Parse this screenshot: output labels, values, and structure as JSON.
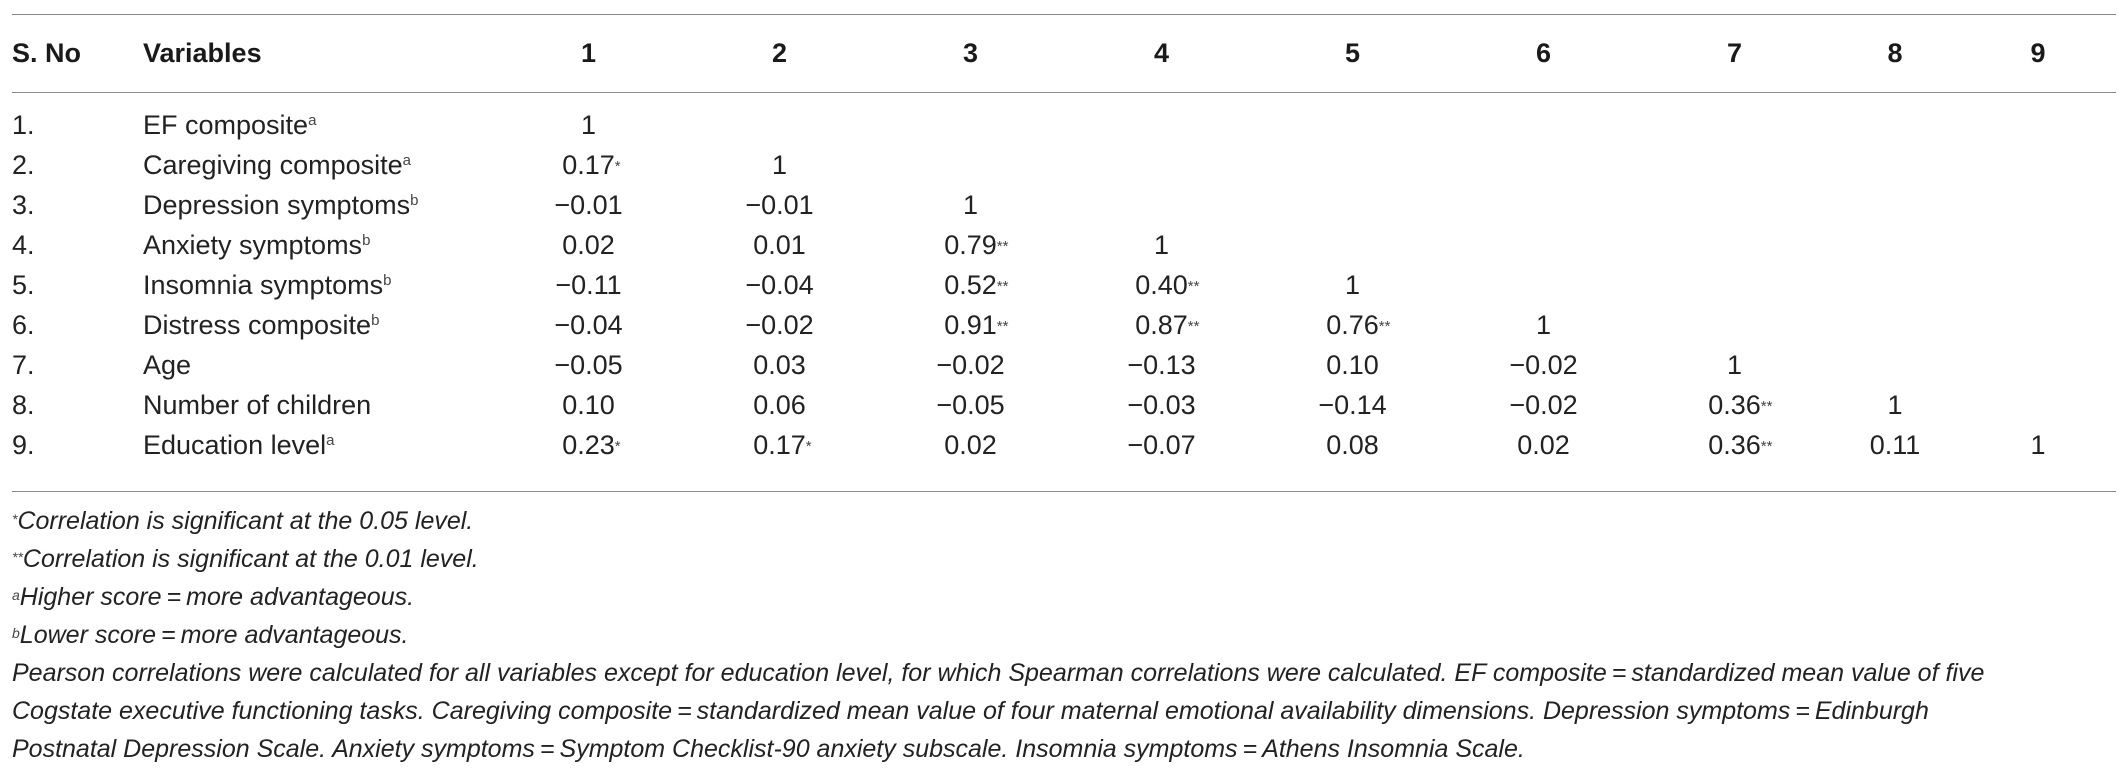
{
  "table": {
    "headers": [
      "S. No",
      "Variables",
      "1",
      "2",
      "3",
      "4",
      "5",
      "6",
      "7",
      "8",
      "9"
    ],
    "rows": [
      {
        "sno": "1.",
        "var": "EF composite",
        "sup": "a",
        "cells": [
          [
            "1",
            ""
          ],
          [
            "",
            ""
          ],
          [
            "",
            ""
          ],
          [
            "",
            ""
          ],
          [
            "",
            ""
          ],
          [
            "",
            ""
          ],
          [
            "",
            ""
          ],
          [
            "",
            ""
          ],
          [
            "",
            ""
          ]
        ]
      },
      {
        "sno": "2.",
        "var": "Caregiving composite",
        "sup": "a",
        "cells": [
          [
            "0.17",
            "*"
          ],
          [
            "1",
            ""
          ],
          [
            "",
            ""
          ],
          [
            "",
            ""
          ],
          [
            "",
            ""
          ],
          [
            "",
            ""
          ],
          [
            "",
            ""
          ],
          [
            "",
            ""
          ],
          [
            "",
            ""
          ]
        ]
      },
      {
        "sno": "3.",
        "var": "Depression symptoms",
        "sup": "b",
        "cells": [
          [
            "−0.01",
            ""
          ],
          [
            "−0.01",
            ""
          ],
          [
            "1",
            ""
          ],
          [
            "",
            ""
          ],
          [
            "",
            ""
          ],
          [
            "",
            ""
          ],
          [
            "",
            ""
          ],
          [
            "",
            ""
          ],
          [
            "",
            ""
          ]
        ]
      },
      {
        "sno": "4.",
        "var": "Anxiety symptoms",
        "sup": "b",
        "cells": [
          [
            "0.02",
            ""
          ],
          [
            "0.01",
            ""
          ],
          [
            "0.79",
            "**"
          ],
          [
            "1",
            ""
          ],
          [
            "",
            ""
          ],
          [
            "",
            ""
          ],
          [
            "",
            ""
          ],
          [
            "",
            ""
          ],
          [
            "",
            ""
          ]
        ]
      },
      {
        "sno": "5.",
        "var": "Insomnia symptoms",
        "sup": "b",
        "cells": [
          [
            "−0.11",
            ""
          ],
          [
            "−0.04",
            ""
          ],
          [
            "0.52",
            "**"
          ],
          [
            "0.40",
            "**"
          ],
          [
            "1",
            ""
          ],
          [
            "",
            ""
          ],
          [
            "",
            ""
          ],
          [
            "",
            ""
          ],
          [
            "",
            ""
          ]
        ]
      },
      {
        "sno": "6.",
        "var": "Distress composite",
        "sup": "b",
        "cells": [
          [
            "−0.04",
            ""
          ],
          [
            "−0.02",
            ""
          ],
          [
            "0.91",
            "**"
          ],
          [
            "0.87",
            "**"
          ],
          [
            "0.76",
            "**"
          ],
          [
            "1",
            ""
          ],
          [
            "",
            ""
          ],
          [
            "",
            ""
          ],
          [
            "",
            ""
          ]
        ]
      },
      {
        "sno": "7.",
        "var": "Age",
        "sup": "",
        "cells": [
          [
            "−0.05",
            ""
          ],
          [
            "0.03",
            ""
          ],
          [
            "−0.02",
            ""
          ],
          [
            "−0.13",
            ""
          ],
          [
            "0.10",
            ""
          ],
          [
            "−0.02",
            ""
          ],
          [
            "1",
            ""
          ],
          [
            "",
            ""
          ],
          [
            "",
            ""
          ]
        ]
      },
      {
        "sno": "8.",
        "var": "Number of children",
        "sup": "",
        "cells": [
          [
            "0.10",
            ""
          ],
          [
            "0.06",
            ""
          ],
          [
            "−0.05",
            ""
          ],
          [
            "−0.03",
            ""
          ],
          [
            "−0.14",
            ""
          ],
          [
            "−0.02",
            ""
          ],
          [
            "0.36",
            "**"
          ],
          [
            "1",
            ""
          ],
          [
            "",
            ""
          ]
        ]
      },
      {
        "sno": "9.",
        "var": "Education level",
        "sup": "a",
        "cells": [
          [
            "0.23",
            "*"
          ],
          [
            "0.17",
            "*"
          ],
          [
            "0.02",
            ""
          ],
          [
            "−0.07",
            ""
          ],
          [
            "0.08",
            ""
          ],
          [
            "0.02",
            ""
          ],
          [
            "0.36",
            "**"
          ],
          [
            "0.11",
            ""
          ],
          [
            "1",
            ""
          ]
        ]
      }
    ]
  },
  "notes": {
    "n1_mark": "*",
    "n1": "Correlation is significant at the 0.05 level.",
    "n2_mark": "**",
    "n2": "Correlation is significant at the 0.01 level.",
    "n3_mark": "a",
    "n3": "Higher score = more advantageous.",
    "n4_mark": "b",
    "n4": "Lower score = more advantageous.",
    "p1": "Pearson correlations were calculated for all variables except for education level, for which Spearman correlations were calculated. EF composite = standardized mean value of five",
    "p2": "Cogstate executive functioning tasks. Caregiving composite = standardized mean value of four maternal emotional availability dimensions. Depression symptoms = Edinburgh",
    "p3": "Postnatal Depression Scale. Anxiety symptoms = Symptom Checklist-90 anxiety subscale. Insomnia symptoms = Athens Insomnia Scale."
  }
}
